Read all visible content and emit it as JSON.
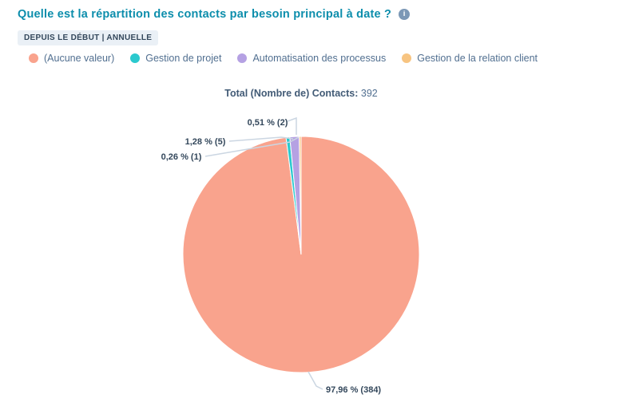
{
  "header": {
    "title": "Quelle est la répartition des contacts par besoin principal à date ?",
    "info_glyph": "i",
    "filter_badge": "DEPUIS LE DÉBUT | ANNUELLE"
  },
  "legend": {
    "items": [
      {
        "label": "(Aucune valeur)",
        "color": "#F9A38D"
      },
      {
        "label": "Gestion de projet",
        "color": "#2BC9CE"
      },
      {
        "label": "Automatisation des processus",
        "color": "#B5A1E3"
      },
      {
        "label": "Gestion de la relation client",
        "color": "#F7C481"
      }
    ]
  },
  "total": {
    "label": "Total (Nombre de) Contacts:",
    "value": "392"
  },
  "chart_data": {
    "type": "pie",
    "title": "Total (Nombre de) Contacts: 392",
    "total": 392,
    "unit": "Contacts",
    "legend_position": "top",
    "slices": [
      {
        "name": "(Aucune valeur)",
        "value": 384,
        "percent": 97.96,
        "label": "97,96 % (384)",
        "color": "#F9A38D"
      },
      {
        "name": "Gestion de projet",
        "value": 2,
        "percent": 0.51,
        "label": "0,51 % (2)",
        "color": "#2BC9CE"
      },
      {
        "name": "Automatisation des processus",
        "value": 5,
        "percent": 1.28,
        "label": "1,28 % (5)",
        "color": "#B5A1E3"
      },
      {
        "name": "Gestion de la relation client",
        "value": 1,
        "percent": 0.26,
        "label": "0,26 % (1)",
        "color": "#F7C481"
      }
    ]
  },
  "colors": {
    "title": "#0D8EAC",
    "data_label": "#33475B",
    "legend_text": "#516F90",
    "badge_bg": "#EAF0F6",
    "badge_text": "#33475B",
    "connector": "#CBD6E2",
    "info_icon_bg": "#7C98B6",
    "background": "#FFFFFF"
  }
}
